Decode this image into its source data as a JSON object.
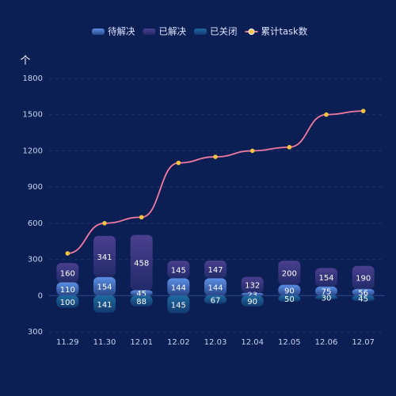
{
  "chart_data": {
    "type": "bar",
    "y_axis_label": "个",
    "categories": [
      "11.29",
      "11.30",
      "12.01",
      "12.02",
      "12.03",
      "12.04",
      "12.05",
      "12.06",
      "12.07"
    ],
    "series": [
      {
        "name": "待解决",
        "color": "#5b8fe6",
        "values": [
          110,
          154,
          45,
          144,
          144,
          23,
          90,
          75,
          56
        ]
      },
      {
        "name": "已解决",
        "color": "#4a3f8f",
        "values": [
          160,
          341,
          458,
          145,
          147,
          132,
          200,
          154,
          190
        ]
      },
      {
        "name": "已关闭",
        "color": "#1e6aa0",
        "values": [
          -100,
          -141,
          -88,
          -145,
          -67,
          -90,
          -50,
          -30,
          -45
        ],
        "value_labels": [
          "100",
          "141",
          "88",
          "145",
          "67",
          "90",
          "50",
          "30",
          "45"
        ]
      },
      {
        "name": "累计task数",
        "type": "line",
        "color": "#f07aa0",
        "marker_color": "#f5c342",
        "values": [
          350,
          600,
          650,
          1100,
          1150,
          1200,
          1230,
          1500,
          1530
        ]
      }
    ],
    "ylim": [
      -300,
      1800
    ],
    "yticks": [
      {
        "value": -300,
        "label": "300"
      },
      0,
      300,
      600,
      900,
      1200,
      1500,
      1800
    ],
    "grid": true
  }
}
